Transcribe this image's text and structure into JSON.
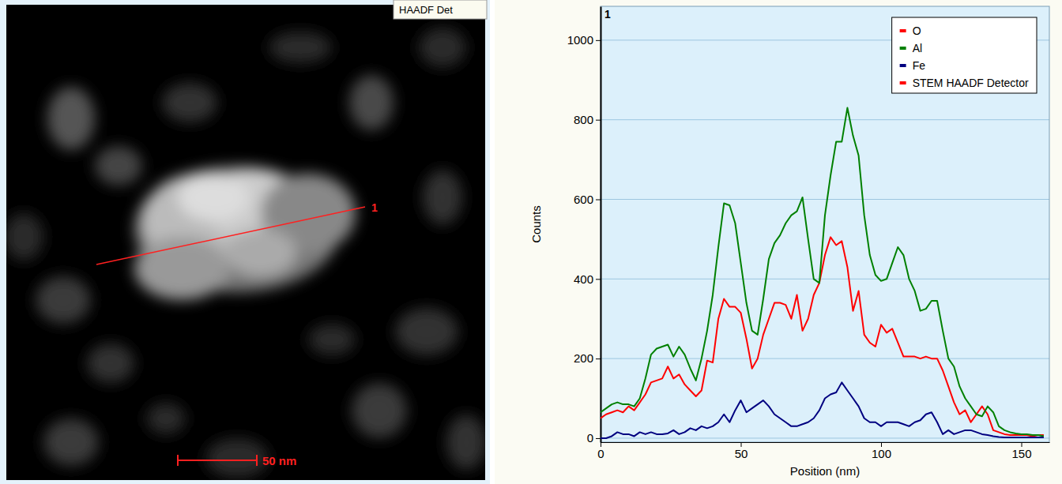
{
  "image": {
    "detector": "HAADF Det",
    "line_label": "1",
    "scale_bar": "50 nm"
  },
  "chart_data": {
    "type": "line",
    "panel_label": "1",
    "x_label": "Position (nm)",
    "y_label": "Counts",
    "x": [
      0,
      2,
      4,
      6,
      8,
      10,
      12,
      14,
      16,
      18,
      20,
      22,
      24,
      26,
      28,
      30,
      32,
      34,
      36,
      38,
      40,
      42,
      44,
      46,
      48,
      50,
      52,
      54,
      56,
      58,
      60,
      62,
      64,
      66,
      68,
      70,
      72,
      74,
      76,
      78,
      80,
      82,
      84,
      86,
      88,
      90,
      92,
      94,
      96,
      98,
      100,
      102,
      104,
      106,
      108,
      110,
      112,
      114,
      116,
      118,
      120,
      122,
      124,
      126,
      128,
      130,
      132,
      134,
      136,
      138,
      140,
      142,
      144,
      146,
      148,
      150,
      152,
      154,
      156,
      158
    ],
    "xlim": [
      0,
      160
    ],
    "xticks": [
      0,
      50,
      100,
      150
    ],
    "ylim": [
      -10,
      1085
    ],
    "yticks": [
      0,
      200,
      400,
      600,
      800,
      1000
    ],
    "grid": true,
    "legend": "top-right",
    "series": [
      {
        "name": "O",
        "color": "#ff0000",
        "values": [
          50,
          60,
          65,
          70,
          65,
          80,
          70,
          90,
          110,
          140,
          145,
          150,
          180,
          150,
          160,
          135,
          120,
          105,
          120,
          195,
          190,
          300,
          350,
          330,
          330,
          315,
          250,
          175,
          200,
          260,
          300,
          340,
          340,
          335,
          300,
          360,
          270,
          300,
          360,
          390,
          460,
          505,
          485,
          495,
          430,
          320,
          370,
          260,
          240,
          230,
          285,
          265,
          275,
          240,
          205,
          205,
          205,
          200,
          205,
          200,
          200,
          170,
          130,
          90,
          60,
          70,
          40,
          60,
          80,
          60,
          20,
          15,
          10,
          8,
          8,
          8,
          8,
          5,
          8,
          8
        ]
      },
      {
        "name": "Al",
        "color": "#008000",
        "values": [
          65,
          75,
          85,
          90,
          85,
          85,
          80,
          100,
          150,
          210,
          225,
          230,
          235,
          205,
          230,
          210,
          175,
          145,
          200,
          270,
          360,
          480,
          590,
          585,
          540,
          440,
          340,
          270,
          260,
          350,
          450,
          490,
          510,
          540,
          560,
          570,
          605,
          500,
          400,
          390,
          560,
          660,
          745,
          745,
          830,
          760,
          710,
          560,
          460,
          410,
          395,
          400,
          440,
          480,
          460,
          400,
          370,
          320,
          325,
          345,
          345,
          270,
          200,
          180,
          130,
          100,
          80,
          60,
          55,
          80,
          65,
          30,
          20,
          15,
          12,
          10,
          10,
          8,
          8,
          5
        ]
      },
      {
        "name": "Fe",
        "color": "#000080",
        "values": [
          0,
          0,
          5,
          15,
          10,
          10,
          5,
          15,
          10,
          15,
          10,
          10,
          12,
          20,
          10,
          15,
          25,
          20,
          30,
          25,
          30,
          40,
          60,
          40,
          70,
          95,
          65,
          75,
          85,
          95,
          80,
          60,
          50,
          40,
          30,
          30,
          35,
          40,
          50,
          70,
          100,
          110,
          115,
          140,
          120,
          100,
          80,
          50,
          40,
          40,
          30,
          40,
          40,
          40,
          35,
          30,
          40,
          45,
          60,
          65,
          40,
          10,
          20,
          10,
          15,
          20,
          20,
          15,
          10,
          8,
          5,
          3,
          2,
          2,
          2,
          2,
          2,
          2,
          2,
          2
        ]
      },
      {
        "name": "STEM HAADF Detector",
        "color": "#ff0000",
        "values": [
          null,
          null,
          null,
          null,
          null,
          null,
          null,
          null,
          null,
          null,
          null,
          null,
          null,
          null,
          null,
          null,
          null,
          null,
          null,
          null,
          null,
          null,
          null,
          null,
          null,
          null,
          null,
          null,
          null,
          null,
          null,
          null,
          null,
          null,
          null,
          null,
          null,
          null,
          null,
          null,
          null,
          null,
          null,
          null,
          null,
          null,
          null,
          null,
          null,
          null,
          null,
          null,
          null,
          null,
          null,
          null,
          null,
          null,
          null,
          null,
          null,
          null,
          null,
          null,
          null,
          null,
          null,
          null,
          null,
          null,
          null,
          null,
          null,
          null,
          null,
          null,
          null,
          null,
          null,
          null
        ]
      }
    ]
  }
}
